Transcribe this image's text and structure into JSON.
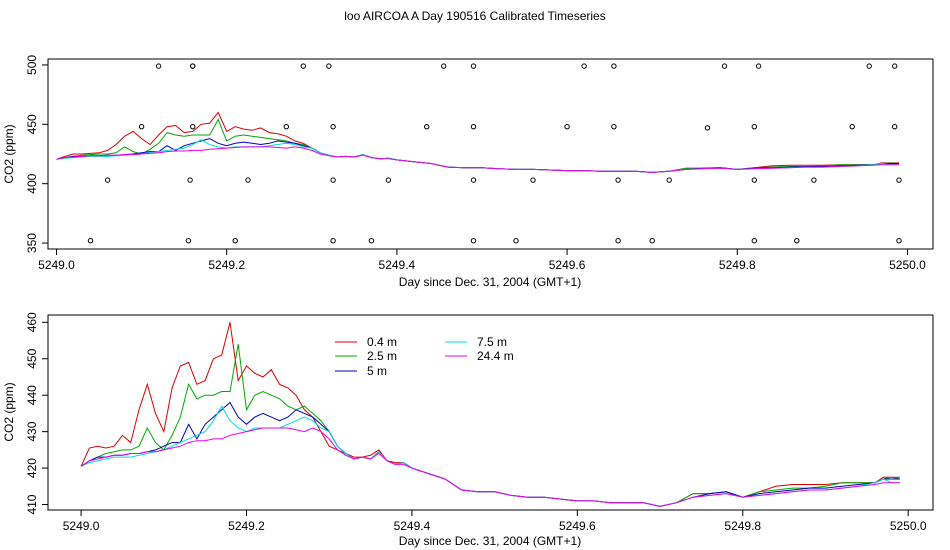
{
  "title": "loo AIRCOA A  Day 190516  Calibrated Timeseries",
  "chart_data": [
    {
      "type": "scatter",
      "xlabel": "Day since Dec. 31, 2004 (GMT+1)",
      "ylabel": "CO2 (ppm)",
      "xlim": [
        5248.99,
        5250.03
      ],
      "ylim": [
        345,
        505
      ],
      "xticks": [
        "5249.0",
        "5249.2",
        "5249.4",
        "5249.6",
        "5249.8",
        "5250.0"
      ],
      "yticks": [
        "350",
        "400",
        "450",
        "500"
      ],
      "grid": false,
      "line_colors": [
        "#dd0000",
        "#00aa00",
        "#0000bb",
        "#00dddd",
        "#ee00ee"
      ],
      "line_x": [
        5249.0,
        5249.01,
        5249.02,
        5249.03,
        5249.04,
        5249.05,
        5249.06,
        5249.07,
        5249.08,
        5249.09,
        5249.1,
        5249.11,
        5249.12,
        5249.13,
        5249.14,
        5249.15,
        5249.16,
        5249.17,
        5249.18,
        5249.19,
        5249.2,
        5249.21,
        5249.22,
        5249.23,
        5249.24,
        5249.25,
        5249.26,
        5249.27,
        5249.28,
        5249.29,
        5249.3,
        5249.31,
        5249.32,
        5249.33,
        5249.34,
        5249.35,
        5249.36,
        5249.37,
        5249.38,
        5249.39,
        5249.4,
        5249.42,
        5249.44,
        5249.46,
        5249.48,
        5249.5,
        5249.52,
        5249.54,
        5249.56,
        5249.58,
        5249.6,
        5249.62,
        5249.64,
        5249.66,
        5249.68,
        5249.7,
        5249.72,
        5249.74,
        5249.76,
        5249.78,
        5249.8,
        5249.82,
        5249.84,
        5249.86,
        5249.88,
        5249.9,
        5249.92,
        5249.94,
        5249.96,
        5249.97,
        5249.98,
        5249.99
      ],
      "series": [
        {
          "values": [
            420.5,
            423,
            425,
            425,
            425.5,
            426,
            428,
            433,
            440,
            444,
            438,
            433,
            441,
            448,
            449,
            443,
            444,
            450,
            451,
            460,
            444,
            448,
            446,
            445,
            447,
            443,
            442,
            440,
            436,
            434,
            430,
            426,
            424,
            422.5,
            423,
            422.5,
            424.5,
            422,
            421,
            421.5,
            420,
            418.5,
            417,
            414,
            413.5,
            413.5,
            412.5,
            412,
            412,
            411.5,
            411,
            411,
            410.5,
            410.5,
            410.5,
            409.5,
            410.5,
            413,
            413,
            413.5,
            412,
            413.5,
            415,
            415.5,
            415.5,
            415.5,
            416,
            416,
            416,
            417.5,
            417.5,
            417.5
          ]
        },
        {
          "values": [
            420.5,
            422,
            423,
            424,
            424.5,
            425,
            425,
            426,
            431,
            427,
            425,
            429,
            434,
            443,
            441,
            440,
            441,
            441,
            441,
            454,
            436,
            440,
            441,
            440,
            439,
            438,
            437,
            436,
            434,
            433,
            430,
            426,
            424,
            422.5,
            423,
            422.5,
            424.5,
            422,
            421,
            421.5,
            420,
            418.5,
            417,
            414,
            413.5,
            413.5,
            412.5,
            412,
            412,
            411.5,
            411,
            411,
            410.5,
            410.5,
            410.5,
            409.5,
            410.5,
            413,
            413,
            413.5,
            412,
            413.5,
            414,
            414.5,
            414.5,
            415,
            416,
            416,
            416,
            417,
            417.5,
            417
          ]
        },
        {
          "values": [
            420.5,
            422,
            423,
            423,
            423.5,
            423.5,
            424,
            424,
            424.5,
            425,
            426,
            427,
            427,
            432,
            428,
            432,
            434,
            436,
            438,
            434,
            432,
            434,
            435,
            434,
            433,
            434,
            436,
            435,
            434,
            432,
            430,
            426,
            424,
            422.5,
            423,
            422.5,
            424.5,
            422,
            421,
            421.5,
            420,
            418.5,
            417,
            414,
            413.5,
            413.5,
            412.5,
            412,
            412,
            411.5,
            411,
            411,
            410.5,
            410.5,
            410.5,
            409.5,
            410.5,
            412,
            413,
            413.5,
            412,
            413,
            413.5,
            414,
            414.5,
            414.5,
            415,
            415.5,
            416,
            417,
            417,
            417
          ]
        },
        {
          "values": [
            420.5,
            421.5,
            422,
            422.5,
            423,
            423,
            423,
            423.5,
            424,
            424.5,
            425,
            426,
            427,
            428,
            429,
            430,
            433,
            437,
            433,
            431,
            430,
            431,
            431,
            431,
            431,
            432,
            433,
            434,
            433,
            431,
            430,
            426,
            424,
            422.5,
            423,
            422.5,
            424.5,
            422,
            421,
            421.5,
            420,
            418.5,
            417,
            414,
            413.5,
            413.5,
            412.5,
            412,
            412,
            411.5,
            411,
            411,
            410.5,
            410.5,
            410.5,
            409.5,
            410.5,
            412,
            412.5,
            413,
            412,
            412.5,
            413,
            413.5,
            414,
            414,
            414.5,
            415,
            416,
            417,
            416,
            416
          ]
        },
        {
          "values": [
            420.5,
            422,
            422.5,
            423,
            423.5,
            423.5,
            424,
            424,
            424.5,
            424.5,
            425,
            425.5,
            426,
            427,
            427.5,
            427.5,
            428,
            428,
            429,
            429.5,
            430,
            430.5,
            431,
            431,
            431,
            431,
            430.5,
            430,
            431,
            430,
            428,
            425,
            423.5,
            422.5,
            423,
            422.5,
            424,
            422,
            421,
            421,
            420,
            418.5,
            417,
            414,
            413.5,
            413.5,
            412.5,
            412,
            412,
            411.5,
            411,
            411,
            410.5,
            410.5,
            410.5,
            409.5,
            410.5,
            412,
            412.5,
            413,
            412,
            412.5,
            413,
            413.5,
            414,
            414,
            414.5,
            415,
            415.5,
            416,
            416,
            416
          ]
        }
      ],
      "markers_x": [
        5249.04,
        5249.06,
        5249.1,
        5249.12,
        5249.155,
        5249.157,
        5249.16,
        5249.16,
        5249.16,
        5249.21,
        5249.225,
        5249.27,
        5249.29,
        5249.32,
        5249.325,
        5249.325,
        5249.325,
        5249.37,
        5249.39,
        5249.435,
        5249.455,
        5249.49,
        5249.49,
        5249.49,
        5249.49,
        5249.54,
        5249.56,
        5249.6,
        5249.62,
        5249.655,
        5249.655,
        5249.66,
        5249.66,
        5249.7,
        5249.72,
        5249.765,
        5249.785,
        5249.82,
        5249.82,
        5249.82,
        5249.825,
        5249.87,
        5249.89,
        5249.935,
        5249.955,
        5249.985,
        5249.985,
        5249.99,
        5249.99
      ],
      "markers_y": [
        352,
        403,
        448,
        499,
        352,
        403,
        448,
        499,
        499,
        352,
        403,
        448,
        499,
        499,
        352,
        403,
        448,
        352,
        403,
        448,
        499,
        352,
        403,
        448,
        499,
        352,
        403,
        448,
        499,
        499,
        448,
        403,
        352,
        352,
        403,
        447,
        499,
        352,
        403,
        448,
        499,
        352,
        403,
        448,
        499,
        499,
        448,
        403,
        352
      ]
    },
    {
      "type": "line",
      "xlabel": "Day since Dec. 31, 2004 (GMT+1)",
      "ylabel": "CO2 (ppm)",
      "xlim": [
        5248.96,
        5250.03
      ],
      "ylim": [
        408.5,
        462
      ],
      "xticks": [
        "5249.0",
        "5249.2",
        "5249.4",
        "5249.6",
        "5249.8",
        "5250.0"
      ],
      "yticks": [
        "410",
        "420",
        "430",
        "440",
        "450",
        "460"
      ],
      "grid": false,
      "legend_position": "top-left",
      "x": [
        5249.0,
        5249.01,
        5249.02,
        5249.03,
        5249.04,
        5249.05,
        5249.06,
        5249.07,
        5249.08,
        5249.09,
        5249.1,
        5249.11,
        5249.12,
        5249.13,
        5249.14,
        5249.15,
        5249.16,
        5249.17,
        5249.18,
        5249.19,
        5249.2,
        5249.21,
        5249.22,
        5249.23,
        5249.24,
        5249.25,
        5249.26,
        5249.27,
        5249.28,
        5249.29,
        5249.3,
        5249.31,
        5249.32,
        5249.33,
        5249.34,
        5249.35,
        5249.36,
        5249.37,
        5249.38,
        5249.39,
        5249.4,
        5249.42,
        5249.44,
        5249.46,
        5249.48,
        5249.5,
        5249.52,
        5249.54,
        5249.56,
        5249.58,
        5249.6,
        5249.62,
        5249.64,
        5249.66,
        5249.68,
        5249.7,
        5249.72,
        5249.74,
        5249.76,
        5249.78,
        5249.8,
        5249.82,
        5249.84,
        5249.86,
        5249.88,
        5249.9,
        5249.92,
        5249.94,
        5249.96,
        5249.97,
        5249.98,
        5249.99
      ],
      "series": [
        {
          "name": "0.4 m",
          "color": "#dd0000",
          "values": [
            420.5,
            425.5,
            426,
            425.5,
            426,
            429,
            427,
            436,
            443,
            435,
            430,
            442,
            448,
            449,
            443,
            444,
            450,
            451,
            460,
            444,
            448,
            446,
            445,
            447,
            443,
            442,
            440,
            436,
            434,
            430,
            426,
            425,
            424,
            423,
            423,
            423.5,
            425,
            422,
            421.5,
            421.5,
            420,
            418.5,
            417,
            414,
            413.5,
            413.5,
            412.5,
            412,
            412,
            411.5,
            411,
            411,
            410.5,
            410.5,
            410.5,
            409.5,
            410.5,
            413,
            413,
            413.5,
            412,
            413.5,
            415,
            415.5,
            415.5,
            415.5,
            416,
            416,
            416,
            417.5,
            417.5,
            417.5
          ]
        },
        {
          "name": "2.5 m",
          "color": "#00aa00",
          "values": [
            420.5,
            422,
            423,
            424,
            424.5,
            425,
            425,
            426,
            431,
            427,
            425,
            429,
            434,
            443,
            439,
            440,
            440,
            441,
            441,
            454,
            436,
            440,
            441,
            440,
            439,
            437,
            436,
            437,
            435,
            433,
            430,
            426,
            424,
            422.5,
            423,
            422.5,
            424.5,
            422,
            421,
            421.5,
            420,
            418.5,
            417,
            414,
            413.5,
            413.5,
            412.5,
            412,
            412,
            411.5,
            411,
            411,
            410.5,
            410.5,
            410.5,
            409.5,
            410.5,
            413,
            413,
            413.5,
            412,
            413.5,
            414,
            414.5,
            414.5,
            415,
            416,
            416,
            416,
            417,
            417.5,
            417
          ]
        },
        {
          "name": "5 m",
          "color": "#0000bb",
          "values": [
            420.5,
            422,
            423,
            423,
            423.5,
            423.5,
            424,
            424,
            424.5,
            425,
            426,
            427,
            427,
            432,
            428,
            432,
            434,
            436,
            438,
            434,
            432,
            434,
            435,
            434,
            433,
            434,
            436,
            435,
            434,
            432,
            430,
            426,
            424,
            422.5,
            423,
            422.5,
            424.5,
            422,
            421,
            421.5,
            420,
            418.5,
            417,
            414,
            413.5,
            413.5,
            412.5,
            412,
            412,
            411.5,
            411,
            411,
            410.5,
            410.5,
            410.5,
            409.5,
            410.5,
            412,
            413,
            413.5,
            412,
            413,
            413.5,
            414,
            414.5,
            414.5,
            415,
            415.5,
            416,
            417,
            417,
            417
          ]
        },
        {
          "name": "7.5 m",
          "color": "#00dddd",
          "values": [
            420.5,
            421.5,
            422,
            422.5,
            423,
            423,
            423,
            423.5,
            424,
            424.5,
            425,
            426,
            427,
            428,
            429,
            430,
            433,
            437,
            433,
            431,
            430,
            431,
            431,
            431,
            431,
            432,
            433,
            434,
            433,
            431,
            430,
            426,
            424,
            422.5,
            423,
            422.5,
            424.5,
            422,
            421,
            421.5,
            420,
            418.5,
            417,
            414,
            413.5,
            413.5,
            412.5,
            412,
            412,
            411.5,
            411,
            411,
            410.5,
            410.5,
            410.5,
            409.5,
            410.5,
            412,
            412.5,
            413,
            412,
            412.5,
            413,
            413.5,
            414,
            414,
            414.5,
            415,
            416,
            417,
            416,
            416
          ]
        },
        {
          "name": "24.4 m",
          "color": "#ee00ee",
          "values": [
            420.5,
            422,
            422.5,
            423,
            423.5,
            423.5,
            424,
            424,
            424.5,
            424.5,
            425,
            425.5,
            426,
            427,
            427.5,
            427.5,
            428,
            428,
            429,
            429.5,
            430,
            430.5,
            431,
            431,
            431,
            431,
            430.5,
            430,
            431,
            430,
            428,
            425,
            423.5,
            422.5,
            423,
            422.5,
            424,
            422,
            421,
            421,
            420,
            418.5,
            417,
            414,
            413.5,
            413.5,
            412.5,
            412,
            412,
            411.5,
            411,
            411,
            410.5,
            410.5,
            410.5,
            409.5,
            410.5,
            412,
            412.5,
            413,
            412,
            412.5,
            413,
            413.5,
            414,
            414,
            414.5,
            415,
            415.5,
            416,
            416,
            416
          ]
        }
      ]
    }
  ]
}
